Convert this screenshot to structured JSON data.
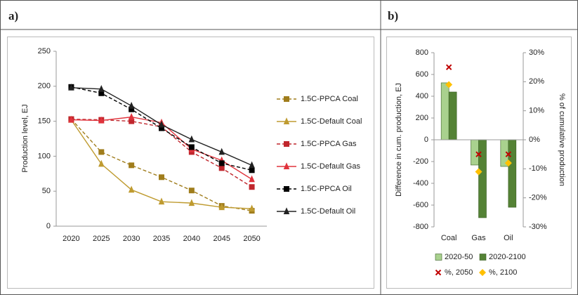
{
  "chart_data": [
    {
      "type": "line",
      "label": "a)",
      "y_label": "Production level, EJ",
      "categories": [
        "2020",
        "2025",
        "2030",
        "2035",
        "2040",
        "2045",
        "2050"
      ],
      "ylim": [
        0,
        250
      ],
      "yticks": [
        0,
        50,
        100,
        150,
        200,
        250
      ],
      "grid": false,
      "legend": "right",
      "series": [
        {
          "name": "1.5C-PPCA Coal",
          "color": "#a07d1c",
          "dash": true,
          "marker": "square",
          "values": [
            153,
            106,
            87,
            70,
            51,
            29,
            22
          ]
        },
        {
          "name": "1.5C-Default Coal",
          "color": "#bf9b30",
          "dash": false,
          "marker": "triangle",
          "values": [
            152,
            89,
            52,
            35,
            33,
            27,
            25
          ]
        },
        {
          "name": "1.5C-PPCA Gas",
          "color": "#c0262d",
          "dash": true,
          "marker": "square",
          "values": [
            153,
            152,
            150,
            142,
            106,
            83,
            56
          ]
        },
        {
          "name": "1.5C-Default Gas",
          "color": "#e0333c",
          "dash": false,
          "marker": "triangle",
          "values": [
            152,
            151,
            156,
            148,
            110,
            94,
            67
          ]
        },
        {
          "name": "1.5C-PPCA Oil",
          "color": "#000000",
          "dash": true,
          "marker": "square",
          "values": [
            199,
            190,
            167,
            140,
            113,
            90,
            80
          ]
        },
        {
          "name": "1.5C-Default Oil",
          "color": "#222222",
          "dash": false,
          "marker": "triangle",
          "values": [
            198,
            196,
            172,
            145,
            124,
            106,
            87
          ]
        }
      ]
    },
    {
      "type": "bar",
      "label": "b)",
      "y_label": "Difference in cum. production, EJ",
      "y2_label": "% of cumulative production",
      "categories": [
        "Coal",
        "Gas",
        "Oil"
      ],
      "ylim": [
        -800,
        800
      ],
      "yticks": [
        -800,
        -600,
        -400,
        -200,
        0,
        200,
        400,
        600,
        800
      ],
      "y2lim": [
        -30,
        30
      ],
      "y2ticks": [
        {
          "value": -30,
          "label": "-30%"
        },
        {
          "value": -20,
          "label": "-20%"
        },
        {
          "value": -10,
          "label": "-10%"
        },
        {
          "value": 0,
          "label": "0%"
        },
        {
          "value": 10,
          "label": "10%"
        },
        {
          "value": 20,
          "label": "20%"
        },
        {
          "value": 30,
          "label": "30%"
        }
      ],
      "legend": "bottom",
      "series": [
        {
          "name": "2020-50",
          "color": "#a9d18e",
          "values": [
            523,
            -232,
            -245
          ]
        },
        {
          "name": "2020-2100",
          "color": "#548235",
          "values": [
            439,
            -716,
            -620
          ]
        },
        {
          "name": "%, 2050",
          "color": "#c00000",
          "type": "scatter",
          "marker": "x",
          "axis": "y2",
          "values": [
            25,
            -5,
            -5
          ]
        },
        {
          "name": "%, 2100",
          "color": "#ffc000",
          "type": "scatter",
          "marker": "diamond",
          "axis": "y2",
          "values": [
            19,
            -11,
            -8
          ]
        }
      ]
    }
  ]
}
